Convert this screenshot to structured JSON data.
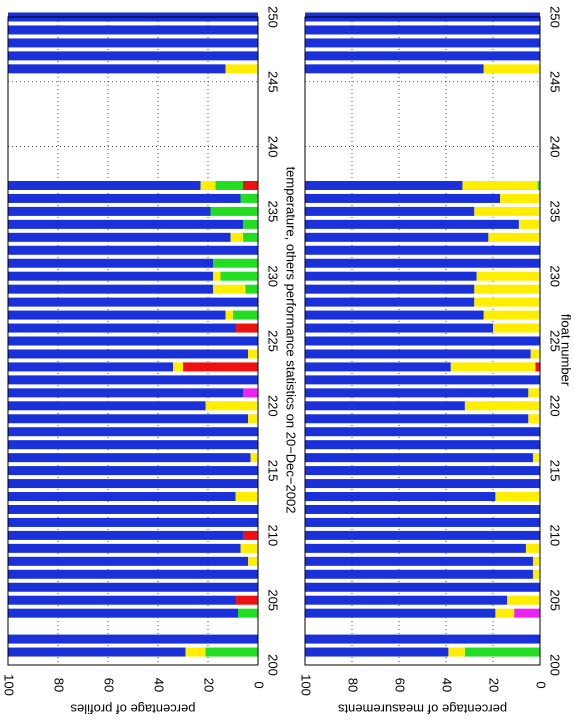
{
  "chart_data": [
    {
      "type": "bar",
      "orientation": "horizontal",
      "title": "temperature, others performance statistics on 20−Dec−2002",
      "ylabel": "percentage of profiles",
      "x": [
        201,
        202,
        204,
        205,
        206,
        207,
        208,
        209,
        210,
        211,
        212,
        213,
        214,
        215,
        216,
        217,
        218,
        219,
        220,
        221,
        222,
        223,
        224,
        225,
        226,
        227,
        228,
        229,
        230,
        231,
        232,
        233,
        234,
        235,
        236,
        237,
        246,
        247,
        248,
        249,
        250
      ],
      "xlim": [
        200,
        250
      ],
      "xticks": [
        200,
        205,
        210,
        215,
        220,
        225,
        230,
        235,
        240,
        245,
        250
      ],
      "ylim": [
        0,
        100
      ],
      "yticks": [
        0,
        20,
        40,
        60,
        80,
        100
      ],
      "grid": true,
      "series": [
        {
          "color": "#ee1111",
          "values": [
            0,
            0,
            0,
            9,
            0,
            0,
            0,
            0,
            6,
            0,
            0,
            0,
            0,
            0,
            0,
            0,
            0,
            0,
            0,
            0,
            0,
            30,
            0,
            0,
            9,
            0,
            0,
            0,
            0,
            0,
            0,
            0,
            0,
            0,
            0,
            6,
            0,
            0,
            0,
            0,
            0
          ]
        },
        {
          "color": "#ee22ee",
          "values": [
            0,
            0,
            0,
            0,
            0,
            0,
            0,
            0,
            0,
            0,
            0,
            0,
            0,
            0,
            0,
            0,
            0,
            0,
            0,
            6,
            0,
            0,
            0,
            0,
            0,
            0,
            0,
            0,
            0,
            0,
            0,
            0,
            0,
            0,
            0,
            0,
            0,
            0,
            0,
            0,
            0
          ]
        },
        {
          "color": "#22dd22",
          "values": [
            21,
            0,
            8,
            0,
            0,
            0,
            0,
            0,
            0,
            0,
            0,
            0,
            0,
            0,
            0,
            0,
            0,
            0,
            0,
            0,
            0,
            0,
            0,
            0,
            0,
            10,
            0,
            5,
            15,
            18,
            0,
            6,
            6,
            19,
            7,
            11,
            0,
            0,
            0,
            0,
            0
          ]
        },
        {
          "color": "#ffee00",
          "values": [
            8,
            0,
            0,
            0,
            0,
            0,
            4,
            7,
            0,
            0,
            0,
            9,
            0,
            0,
            3,
            0,
            0,
            4,
            21,
            0,
            0,
            4,
            4,
            0,
            0,
            3,
            0,
            13,
            3,
            0,
            0,
            5,
            0,
            0,
            0,
            6,
            13,
            0,
            0,
            0,
            0
          ]
        },
        {
          "color": "#1a30d8",
          "values": [
            71,
            100,
            92,
            91,
            100,
            100,
            96,
            93,
            94,
            100,
            100,
            91,
            100,
            100,
            97,
            100,
            100,
            96,
            79,
            94,
            100,
            66,
            96,
            100,
            91,
            87,
            100,
            82,
            82,
            82,
            100,
            89,
            94,
            81,
            93,
            77,
            87,
            100,
            100,
            100,
            100
          ]
        }
      ]
    },
    {
      "type": "bar",
      "orientation": "horizontal",
      "xlabel": "float number",
      "ylabel": "percentage of measurements",
      "x": [
        201,
        202,
        204,
        205,
        206,
        207,
        208,
        209,
        210,
        211,
        212,
        213,
        214,
        215,
        216,
        217,
        218,
        219,
        220,
        221,
        222,
        223,
        224,
        225,
        226,
        227,
        228,
        229,
        230,
        231,
        232,
        233,
        234,
        235,
        236,
        237,
        246,
        247,
        248,
        249,
        250
      ],
      "xlim": [
        200,
        250
      ],
      "xticks": [
        200,
        205,
        210,
        215,
        220,
        225,
        230,
        235,
        240,
        245,
        250
      ],
      "ylim": [
        0,
        100
      ],
      "yticks": [
        0,
        20,
        40,
        60,
        80,
        100
      ],
      "grid": true,
      "series": [
        {
          "color": "#ee1111",
          "values": [
            0,
            0,
            0,
            0,
            0,
            0,
            0,
            0,
            0,
            0,
            0,
            0,
            0,
            0,
            0,
            0,
            0,
            0,
            0,
            0,
            0,
            2,
            0,
            0,
            0,
            0,
            0,
            0,
            0,
            0,
            0,
            0,
            0,
            0,
            0,
            0,
            0,
            0,
            0,
            0,
            0
          ]
        },
        {
          "color": "#ee22ee",
          "values": [
            0,
            0,
            11,
            0,
            0,
            0,
            0,
            0,
            0,
            0,
            0,
            0,
            0,
            0,
            0,
            0,
            0,
            0,
            0,
            0,
            0,
            0,
            0,
            0,
            0,
            0,
            0,
            0,
            0,
            0,
            0,
            0,
            0,
            0,
            0,
            0,
            0,
            0,
            0,
            0,
            0
          ]
        },
        {
          "color": "#22dd22",
          "values": [
            32,
            0,
            0,
            0,
            0,
            0,
            0,
            0,
            0,
            0,
            0,
            0,
            0,
            0,
            0,
            0,
            0,
            0,
            0,
            0,
            0,
            0,
            0,
            0,
            0,
            0,
            0,
            0,
            0,
            0,
            0,
            0,
            0,
            0,
            0,
            1,
            0,
            0,
            0,
            0,
            0
          ]
        },
        {
          "color": "#ffee00",
          "values": [
            7,
            0,
            8,
            14,
            0,
            3,
            3,
            6,
            0,
            0,
            0,
            19,
            0,
            0,
            3,
            0,
            0,
            5,
            32,
            5,
            0,
            36,
            4,
            0,
            20,
            24,
            28,
            28,
            27,
            0,
            0,
            22,
            9,
            28,
            17,
            32,
            24,
            0,
            0,
            0,
            0
          ]
        },
        {
          "color": "#1a30d8",
          "values": [
            61,
            100,
            81,
            86,
            100,
            97,
            97,
            94,
            100,
            100,
            100,
            81,
            100,
            100,
            97,
            100,
            100,
            95,
            68,
            95,
            100,
            62,
            96,
            100,
            80,
            76,
            72,
            72,
            73,
            100,
            100,
            78,
            91,
            72,
            83,
            67,
            76,
            100,
            100,
            100,
            100
          ]
        }
      ]
    }
  ]
}
